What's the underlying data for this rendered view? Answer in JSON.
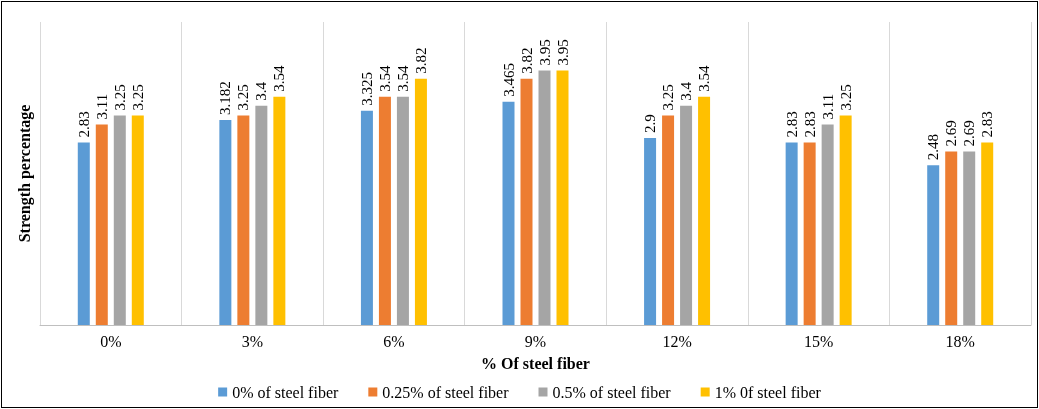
{
  "chart_data": {
    "type": "bar",
    "xlabel": "% Of steel fiber",
    "ylabel": "Strength percentage",
    "categories": [
      "0%",
      "3%",
      "6%",
      "9%",
      "12%",
      "15%",
      "18%"
    ],
    "series": [
      {
        "name": "0% of steel fiber",
        "color": "#5b9bd5",
        "values": [
          2.83,
          3.182,
          3.325,
          3.465,
          2.9,
          2.83,
          2.48
        ]
      },
      {
        "name": "0.25% of steel fiber",
        "color": "#ed7d31",
        "values": [
          3.11,
          3.25,
          3.54,
          3.82,
          3.25,
          2.83,
          2.69
        ]
      },
      {
        "name": "0.5% of steel fiber",
        "color": "#a5a5a5",
        "values": [
          3.25,
          3.4,
          3.54,
          3.95,
          3.4,
          3.11,
          2.69
        ]
      },
      {
        "name": "1% 0f steel fiber",
        "color": "#ffc000",
        "values": [
          3.25,
          3.54,
          3.82,
          3.95,
          3.54,
          3.25,
          2.83
        ]
      }
    ],
    "data_labels": true,
    "grid": "x",
    "legend": "bottom"
  }
}
